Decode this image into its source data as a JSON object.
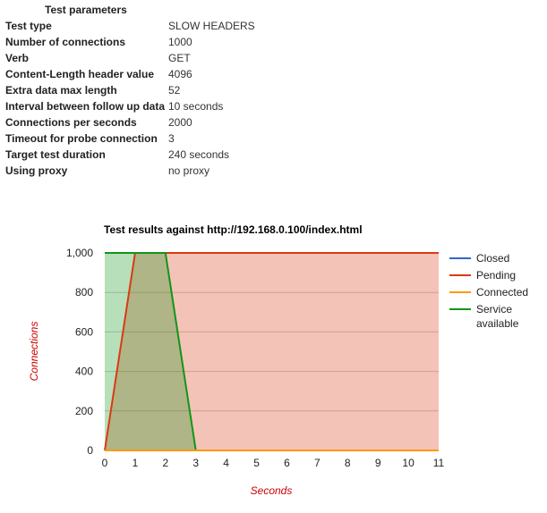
{
  "params": {
    "title": "Test parameters",
    "rows": [
      {
        "key": "Test type",
        "value": "SLOW HEADERS"
      },
      {
        "key": "Number of connections",
        "value": "1000"
      },
      {
        "key": "Verb",
        "value": "GET"
      },
      {
        "key": "Content-Length header value",
        "value": "4096"
      },
      {
        "key": "Extra data max length",
        "value": "52"
      },
      {
        "key": "Interval between follow up data",
        "value": "10 seconds"
      },
      {
        "key": "Connections per seconds",
        "value": "2000"
      },
      {
        "key": "Timeout for probe connection",
        "value": "3"
      },
      {
        "key": "Target test duration",
        "value": "240 seconds"
      },
      {
        "key": "Using proxy",
        "value": "no proxy"
      }
    ]
  },
  "chart_data": {
    "type": "area",
    "title": "Test results against http://192.168.0.100/index.html",
    "xlabel": "Seconds",
    "ylabel": "Connections",
    "x": [
      0,
      1,
      2,
      3,
      4,
      5,
      6,
      7,
      8,
      9,
      10,
      11
    ],
    "xticks": [
      "0",
      "1",
      "2",
      "3",
      "4",
      "5",
      "6",
      "7",
      "8",
      "9",
      "10",
      "11"
    ],
    "yticks": [
      "0",
      "200",
      "400",
      "600",
      "800",
      "1,000"
    ],
    "ytick_values": [
      0,
      200,
      400,
      600,
      800,
      1000
    ],
    "xlim": [
      0,
      11
    ],
    "ylim": [
      0,
      1000
    ],
    "grid": true,
    "legend_position": "right",
    "series": [
      {
        "name": "Closed",
        "color": "#3366cc",
        "values": [
          0,
          0,
          0,
          0,
          0,
          0,
          0,
          0,
          0,
          0,
          0,
          0
        ]
      },
      {
        "name": "Pending",
        "color": "#dc3912",
        "values": [
          0,
          1000,
          1000,
          1000,
          1000,
          1000,
          1000,
          1000,
          1000,
          1000,
          1000,
          1000
        ]
      },
      {
        "name": "Connected",
        "color": "#ff9900",
        "values": [
          0,
          0,
          0,
          0,
          0,
          0,
          0,
          0,
          0,
          0,
          0,
          0
        ]
      },
      {
        "name": "Service available",
        "color": "#109618",
        "values": [
          1000,
          1000,
          1000,
          0,
          0,
          0,
          0,
          0,
          0,
          0,
          0,
          0
        ]
      }
    ]
  }
}
